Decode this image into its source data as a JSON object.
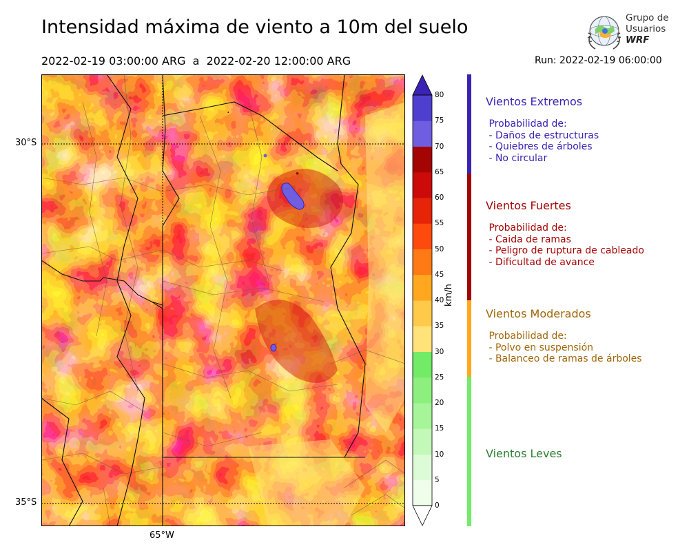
{
  "header": {
    "title": "Intensidad máxima de viento a 10m del suelo",
    "period": "2022-02-19 03:00:00 ARG  a  2022-02-20 12:00:00 ARG",
    "run": "Run: 2022-02-19 06:00:00"
  },
  "logo": {
    "line1": "Grupo de",
    "line2": "Usuarios",
    "line3": "WRF"
  },
  "map": {
    "lat_labels": {
      "north": "30°S",
      "south": "35°S"
    },
    "lon_label": "65°W",
    "extreme_spots": "violet patches near 31°S and 33°S"
  },
  "colorbar": {
    "unit": "km/h",
    "ticks": [
      "0",
      "5",
      "10",
      "15",
      "20",
      "25",
      "30",
      "35",
      "40",
      "45",
      "50",
      "55",
      "60",
      "65",
      "70",
      "75",
      "80"
    ],
    "colors": [
      "#effeeb",
      "#ddfbd6",
      "#c3f8b8",
      "#a6f598",
      "#8df07e",
      "#72eb66",
      "#ffe37a",
      "#ffc94a",
      "#ffa81f",
      "#ff7a14",
      "#ff4a0e",
      "#e52408",
      "#cc0a0a",
      "#a50404",
      "#6f5ee0",
      "#4f3fcf",
      "#3a22b4"
    ]
  },
  "categories": [
    {
      "title": "Vientos Extremos",
      "color": "#3a22b4",
      "lines": [
        " Probabilidad de:",
        " - Daños de estructuras",
        " - Quiebres de árboles",
        " - No circular"
      ]
    },
    {
      "title": "Vientos Fuertes",
      "color": "#a50404",
      "lines": [
        " Probabilidad de:",
        " - Caida de ramas",
        " - Peligro de ruptura de cableado",
        " - Dificultad de avance"
      ]
    },
    {
      "title": "Vientos Moderados",
      "color": "#a0660a",
      "bar_color": "#ffa81f",
      "lines": [
        " Probabilidad de:",
        " - Polvo en suspensión",
        " - Balanceo de ramas de árboles"
      ]
    },
    {
      "title": "Vientos Leves",
      "color": "#2e7d32",
      "bar_color": "#72eb66",
      "lines": []
    }
  ]
}
